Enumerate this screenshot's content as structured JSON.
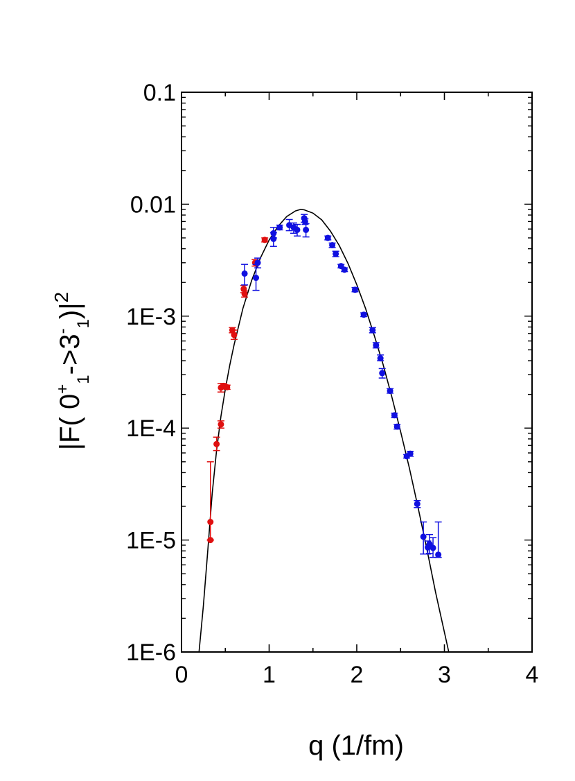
{
  "chart_data": {
    "type": "scatter",
    "title": "",
    "xlabel": "q (1/fm)",
    "ylabel": {
      "pre": "|F( 0",
      "sup1": "+",
      "sub1": "1",
      "mid": "->3",
      "sup2": "-",
      "sub2": "1",
      "post": ")|",
      "sup3": "2"
    },
    "xlim": [
      0,
      4
    ],
    "ylim": [
      1e-06,
      0.1
    ],
    "yscale": "log",
    "grid": false,
    "x_ticks": [
      {
        "value": 0,
        "label": "0"
      },
      {
        "value": 1,
        "label": "1"
      },
      {
        "value": 2,
        "label": "2"
      },
      {
        "value": 3,
        "label": "3"
      },
      {
        "value": 4,
        "label": "4"
      }
    ],
    "y_ticks": [
      {
        "value": 1e-06,
        "label": "1E-6"
      },
      {
        "value": 1e-05,
        "label": "1E-5"
      },
      {
        "value": 0.0001,
        "label": "1E-4"
      },
      {
        "value": 0.001,
        "label": "1E-3"
      },
      {
        "value": 0.01,
        "label": "0.01"
      },
      {
        "value": 0.1,
        "label": "0.1"
      }
    ],
    "series": [
      {
        "color": "#e01010",
        "points": [
          {
            "x": 0.33,
            "y": 1e-05,
            "err": [
              1e-05,
              1e-05
            ]
          },
          {
            "x": 0.33,
            "y": 1.45e-05,
            "err": [
              1e-05,
              5e-05
            ]
          },
          {
            "x": 0.4,
            "y": 7.2e-05,
            "err": [
              6.3e-05,
              8.3e-05
            ]
          },
          {
            "x": 0.45,
            "y": 0.000108,
            "err": [
              0.0001,
              0.000116
            ]
          },
          {
            "x": 0.45,
            "y": 0.00023,
            "err": [
              0.00021,
              0.00025
            ]
          },
          {
            "x": 0.48,
            "y": 0.000238,
            "err": [
              0.000225,
              0.00025
            ]
          },
          {
            "x": 0.52,
            "y": 0.000232,
            "err": [
              0.000222,
              0.000242
            ]
          },
          {
            "x": 0.58,
            "y": 0.00075,
            "err": [
              0.00071,
              0.00079
            ]
          },
          {
            "x": 0.6,
            "y": 0.00068,
            "err": [
              0.00062,
              0.00075
            ]
          },
          {
            "x": 0.71,
            "y": 0.00175,
            "err": [
              0.00162,
              0.00188
            ]
          },
          {
            "x": 0.72,
            "y": 0.00158,
            "err": [
              0.00148,
              0.00168
            ]
          },
          {
            "x": 0.84,
            "y": 0.003,
            "err": [
              0.0028,
              0.0032
            ]
          },
          {
            "x": 0.95,
            "y": 0.0048,
            "err": [
              0.0046,
              0.005
            ]
          }
        ]
      },
      {
        "color": "#1010e0",
        "points": [
          {
            "x": 0.72,
            "y": 0.0024,
            "err": [
              0.0019,
              0.0029
            ]
          },
          {
            "x": 0.85,
            "y": 0.0022,
            "err": [
              0.0017,
              0.0029
            ]
          },
          {
            "x": 0.87,
            "y": 0.003,
            "err": [
              0.0027,
              0.0033
            ]
          },
          {
            "x": 1.05,
            "y": 0.0055,
            "err": [
              0.005,
              0.0062
            ]
          },
          {
            "x": 1.05,
            "y": 0.0049,
            "err": [
              0.0042,
              0.0056
            ]
          },
          {
            "x": 1.12,
            "y": 0.0062,
            "err": [
              0.0059,
              0.0065
            ]
          },
          {
            "x": 1.23,
            "y": 0.0065,
            "err": [
              0.0058,
              0.0073
            ]
          },
          {
            "x": 1.28,
            "y": 0.0062,
            "err": [
              0.0055,
              0.0068
            ]
          },
          {
            "x": 1.32,
            "y": 0.0059,
            "err": [
              0.0052,
              0.0066
            ]
          },
          {
            "x": 1.4,
            "y": 0.0075,
            "err": [
              0.0069,
              0.0081
            ]
          },
          {
            "x": 1.41,
            "y": 0.007,
            "err": [
              0.0066,
              0.0074
            ]
          },
          {
            "x": 1.42,
            "y": 0.0059,
            "err": [
              0.0051,
              0.0067
            ]
          },
          {
            "x": 1.67,
            "y": 0.005,
            "err": [
              0.0048,
              0.0052
            ]
          },
          {
            "x": 1.72,
            "y": 0.0043,
            "err": [
              0.0041,
              0.0045
            ]
          },
          {
            "x": 1.76,
            "y": 0.0036,
            "err": [
              0.0034,
              0.0038
            ]
          },
          {
            "x": 1.82,
            "y": 0.0028,
            "err": [
              0.0027,
              0.0029
            ]
          },
          {
            "x": 1.86,
            "y": 0.0026,
            "err": [
              0.0025,
              0.0027
            ]
          },
          {
            "x": 1.98,
            "y": 0.00172,
            "err": [
              0.00165,
              0.0018
            ]
          },
          {
            "x": 2.08,
            "y": 0.00103,
            "err": [
              0.00099,
              0.00107
            ]
          },
          {
            "x": 2.18,
            "y": 0.00075,
            "err": [
              0.00071,
              0.00079
            ]
          },
          {
            "x": 2.22,
            "y": 0.00055,
            "err": [
              0.00052,
              0.00058
            ]
          },
          {
            "x": 2.27,
            "y": 0.00042,
            "err": [
              0.0004,
              0.00045
            ]
          },
          {
            "x": 2.29,
            "y": 0.00031,
            "err": [
              0.00028,
              0.00034
            ]
          },
          {
            "x": 2.38,
            "y": 0.000215,
            "err": [
              0.000205,
              0.000225
            ]
          },
          {
            "x": 2.43,
            "y": 0.00013,
            "err": [
              0.000124,
              0.000136
            ]
          },
          {
            "x": 2.46,
            "y": 0.000103,
            "err": [
              9.8e-05,
              0.000108
            ]
          },
          {
            "x": 2.57,
            "y": 5.6e-05,
            "err": [
              5.4e-05,
              5.8e-05
            ]
          },
          {
            "x": 2.61,
            "y": 5.9e-05,
            "err": [
              5.6e-05,
              6.2e-05
            ]
          },
          {
            "x": 2.69,
            "y": 2.1e-05,
            "err": [
              1.95e-05,
              2.25e-05
            ]
          },
          {
            "x": 2.76,
            "y": 1.07e-05,
            "err": [
              7.5e-06,
              1.45e-05
            ]
          },
          {
            "x": 2.81,
            "y": 8.6e-06,
            "err": [
              7.5e-06,
              9.8e-06
            ]
          },
          {
            "x": 2.83,
            "y": 9.2e-06,
            "err": [
              7.6e-06,
              1.12e-05
            ]
          },
          {
            "x": 2.87,
            "y": 8.5e-06,
            "err": [
              7e-06,
              1.05e-05
            ]
          },
          {
            "x": 2.93,
            "y": 7.4e-06,
            "err": [
              7e-06,
              1.45e-05
            ]
          }
        ]
      }
    ],
    "curve": {
      "color": "#000000",
      "points": [
        [
          0.2,
          1e-06
        ],
        [
          0.25,
          2.6e-06
        ],
        [
          0.3,
          8e-06
        ],
        [
          0.35,
          2.6e-05
        ],
        [
          0.4,
          6.3e-05
        ],
        [
          0.45,
          0.000127
        ],
        [
          0.5,
          0.000224
        ],
        [
          0.55,
          0.000363
        ],
        [
          0.6,
          0.000555
        ],
        [
          0.7,
          0.00117
        ],
        [
          0.8,
          0.00208
        ],
        [
          0.9,
          0.00331
        ],
        [
          1.0,
          0.00479
        ],
        [
          1.1,
          0.00631
        ],
        [
          1.2,
          0.00776
        ],
        [
          1.3,
          0.00871
        ],
        [
          1.36,
          0.00898
        ],
        [
          1.4,
          0.00891
        ],
        [
          1.5,
          0.00832
        ],
        [
          1.6,
          0.00724
        ],
        [
          1.7,
          0.00575
        ],
        [
          1.8,
          0.00427
        ],
        [
          1.9,
          0.00295
        ],
        [
          2.0,
          0.00191
        ],
        [
          2.1,
          0.00117
        ],
        [
          2.2,
          0.00067
        ],
        [
          2.3,
          0.00037
        ],
        [
          2.4,
          0.00019
        ],
        [
          2.5,
          9.3e-05
        ],
        [
          2.6,
          4.4e-05
        ],
        [
          2.7,
          1.95e-05
        ],
        [
          2.8,
          8.3e-06
        ],
        [
          2.9,
          3.4e-06
        ],
        [
          3.0,
          1.5e-06
        ],
        [
          3.05,
          1e-06
        ]
      ]
    }
  }
}
